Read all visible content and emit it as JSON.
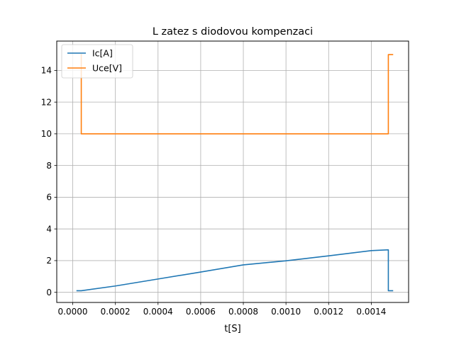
{
  "chart_data": {
    "type": "line",
    "title": "L zatez s diodovou kompenzaci",
    "xlabel": "t[S]",
    "ylabel": "",
    "xlim": [
      -7.5e-05,
      0.001575
    ],
    "ylim": [
      -0.64,
      15.85
    ],
    "xticks": [
      "0.0000",
      "0.0002",
      "0.0004",
      "0.0006",
      "0.0008",
      "0.0010",
      "0.0012",
      "0.0014"
    ],
    "xtick_values": [
      0,
      0.0002,
      0.0004,
      0.0006,
      0.0008,
      0.001,
      0.0012,
      0.0014
    ],
    "yticks": [
      "0",
      "2",
      "4",
      "6",
      "8",
      "10",
      "12",
      "14"
    ],
    "ytick_values": [
      0,
      2,
      4,
      6,
      8,
      10,
      12,
      14
    ],
    "grid": true,
    "legend_position": "top-left",
    "series": [
      {
        "name": "Ic[A]",
        "color": "#1f77b4",
        "x": [
          2e-05,
          4e-05,
          0.0002,
          0.0004,
          0.0006,
          0.0008,
          0.001,
          0.0012,
          0.0014,
          0.00148,
          0.00148,
          0.0015
        ],
        "y": [
          0.1,
          0.1,
          0.4,
          0.84,
          1.28,
          1.73,
          1.99,
          2.3,
          2.63,
          2.68,
          0.1,
          0.1
        ]
      },
      {
        "name": "Uce[V]",
        "color": "#ff7f0e",
        "x": [
          4e-05,
          4e-05,
          0.00148,
          0.00148,
          0.0015
        ],
        "y": [
          15.0,
          10.0,
          10.0,
          15.0,
          15.0
        ]
      }
    ]
  }
}
